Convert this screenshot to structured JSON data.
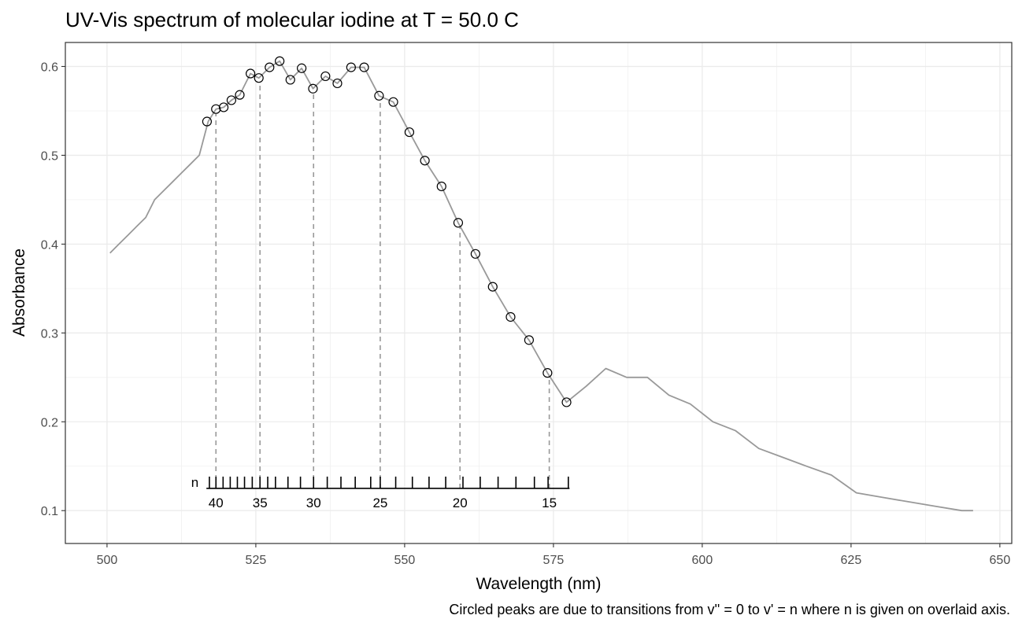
{
  "chart_data": {
    "type": "line",
    "title": "UV-Vis spectrum of molecular iodine at T = 50.0 C",
    "xlabel": "Wavelength (nm)",
    "ylabel": "Absorbance",
    "caption": "Circled peaks are due to transitions from v'' = 0 to v' = n where n is given on overlaid axis.",
    "xlim": [
      493,
      652
    ],
    "ylim": [
      0.063,
      0.627
    ],
    "x_ticks": [
      500,
      525,
      550,
      575,
      600,
      625,
      650
    ],
    "x_tick_labels": [
      "500",
      "525",
      "550",
      "575",
      "600",
      "625",
      "650"
    ],
    "y_ticks": [
      0.1,
      0.2,
      0.3,
      0.4,
      0.5,
      0.6
    ],
    "y_tick_labels": [
      "0.1",
      "0.2",
      "0.3",
      "0.4",
      "0.5",
      "0.6"
    ],
    "grid": true,
    "series": [
      {
        "color": "#999999",
        "x": [
          500.5,
          502.0,
          503.5,
          505.0,
          506.5,
          508.0,
          509.5,
          511.0,
          512.5,
          514.0,
          515.5,
          517.0,
          518.3,
          519.6,
          520.9,
          522.3,
          524.1,
          525.5,
          527.3,
          529.0,
          530.8,
          532.7,
          534.6,
          536.7,
          538.7,
          541.0,
          543.2,
          545.7,
          548.1,
          550.8,
          553.4,
          556.2,
          559.0,
          561.9,
          564.8,
          567.8,
          570.9,
          574.0,
          577.2,
          580.5,
          583.8,
          587.3,
          590.8,
          594.4,
          598.0,
          601.8,
          605.6,
          609.5,
          613.5,
          617.5,
          621.7,
          625.9,
          630.2,
          634.6,
          639.1,
          643.6,
          645.5
        ],
        "y": [
          0.39,
          0.4,
          0.41,
          0.42,
          0.43,
          0.45,
          0.46,
          0.47,
          0.48,
          0.49,
          0.5,
          0.538,
          0.552,
          0.554,
          0.562,
          0.568,
          0.592,
          0.587,
          0.599,
          0.606,
          0.585,
          0.598,
          0.575,
          0.589,
          0.581,
          0.599,
          0.599,
          0.567,
          0.56,
          0.526,
          0.494,
          0.465,
          0.424,
          0.389,
          0.352,
          0.318,
          0.292,
          0.255,
          0.222,
          0.24,
          0.26,
          0.25,
          0.25,
          0.23,
          0.22,
          0.2,
          0.19,
          0.17,
          0.16,
          0.15,
          0.14,
          0.12,
          0.115,
          0.11,
          0.105,
          0.1,
          0.1
        ]
      },
      {
        "name": "Circled peaks",
        "type": "scatter",
        "x": [
          516.8,
          518.3,
          519.6,
          520.9,
          522.3,
          524.1,
          525.5,
          527.3,
          529.0,
          530.8,
          532.7,
          534.6,
          536.7,
          538.7,
          541.0,
          543.2,
          545.7,
          548.1,
          550.8,
          553.4,
          556.2,
          559.0,
          561.9,
          564.8,
          567.8,
          570.9,
          574.0,
          577.2
        ],
        "y": [
          0.538,
          0.552,
          0.554,
          0.562,
          0.568,
          0.592,
          0.587,
          0.599,
          0.606,
          0.585,
          0.598,
          0.575,
          0.589,
          0.581,
          0.599,
          0.599,
          0.567,
          0.56,
          0.526,
          0.494,
          0.465,
          0.424,
          0.389,
          0.352,
          0.318,
          0.292,
          0.255,
          0.222
        ]
      }
    ],
    "n_axis": {
      "label": "n",
      "y": 0.125,
      "x_start": 516.7,
      "x_end": 577.7,
      "tick_x": [
        517.2,
        518.3,
        519.5,
        520.7,
        521.9,
        523.1,
        524.4,
        525.7,
        527.0,
        528.3,
        530.4,
        532.5,
        534.7,
        537.0,
        539.3,
        541.7,
        544.3,
        545.9,
        548.5,
        551.3,
        554.1,
        556.9,
        559.8,
        562.7,
        565.7,
        568.7,
        571.8,
        574.1,
        577.5
      ],
      "labeled_ticks": [
        {
          "n": "40",
          "x": 518.3
        },
        {
          "n": "35",
          "x": 525.7
        },
        {
          "n": "30",
          "x": 534.7
        },
        {
          "n": "25",
          "x": 545.9
        },
        {
          "n": "20",
          "x": 559.3
        },
        {
          "n": "15",
          "x": 574.3
        }
      ]
    },
    "dashed_lines_x": [
      518.3,
      525.7,
      534.7,
      545.9,
      559.3,
      574.3
    ]
  }
}
